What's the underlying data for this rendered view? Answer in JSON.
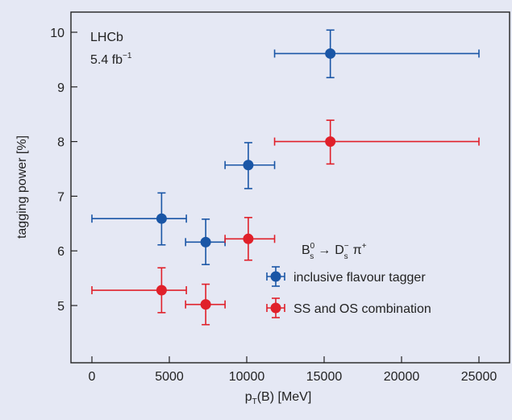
{
  "chart_data": {
    "type": "scatter",
    "xlabel": "p_T(B) [MeV]",
    "xlabel_main": "p",
    "xlabel_sub": "T",
    "xlabel_rest": "(B) [MeV]",
    "ylabel": "tagging power [%]",
    "xlim": [
      -1300,
      27000
    ],
    "ylim": [
      4.0,
      10.35
    ],
    "xticks": [
      0,
      5000,
      10000,
      15000,
      20000,
      25000
    ],
    "yticks": [
      5,
      6,
      7,
      8,
      9,
      10
    ],
    "grid": false,
    "annotations": {
      "experiment": "LHCb",
      "lumi": "5.4 fb",
      "lumi_exp": "−1",
      "decay": {
        "b": "B",
        "b_sup": "0",
        "b_sub": "s",
        "arrow": "→",
        "d": "D",
        "d_sup": "−",
        "d_sub": "s",
        "pi": "π",
        "pi_sup": "+"
      }
    },
    "legend_placement": "bottom-right",
    "series": [
      {
        "name": "inclusive flavour tagger",
        "color": "#1a56a6",
        "points": [
          {
            "x": 4500,
            "y": 6.59,
            "xlo": 0,
            "xhi": 6100,
            "ylo": 6.11,
            "yhi": 7.06
          },
          {
            "x": 7350,
            "y": 6.16,
            "xlo": 6050,
            "xhi": 8600,
            "ylo": 5.75,
            "yhi": 6.58
          },
          {
            "x": 10100,
            "y": 7.57,
            "xlo": 8600,
            "xhi": 11800,
            "ylo": 7.14,
            "yhi": 7.98
          },
          {
            "x": 15400,
            "y": 9.61,
            "xlo": 11800,
            "xhi": 25000,
            "ylo": 9.17,
            "yhi": 10.04
          }
        ]
      },
      {
        "name": "SS and OS combination",
        "color": "#e0202a",
        "points": [
          {
            "x": 4500,
            "y": 5.28,
            "xlo": 0,
            "xhi": 6100,
            "ylo": 4.87,
            "yhi": 5.69
          },
          {
            "x": 7350,
            "y": 5.02,
            "xlo": 6050,
            "xhi": 8600,
            "ylo": 4.65,
            "yhi": 5.39
          },
          {
            "x": 10100,
            "y": 6.22,
            "xlo": 8600,
            "xhi": 11800,
            "ylo": 5.83,
            "yhi": 6.61
          },
          {
            "x": 15400,
            "y": 8.0,
            "xlo": 11800,
            "xhi": 25000,
            "ylo": 7.59,
            "yhi": 8.39
          }
        ]
      }
    ]
  }
}
